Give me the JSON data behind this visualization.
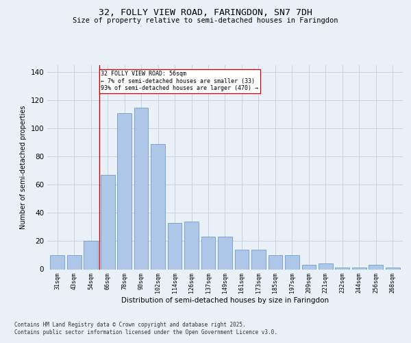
{
  "title1": "32, FOLLY VIEW ROAD, FARINGDON, SN7 7DH",
  "title2": "Size of property relative to semi-detached houses in Faringdon",
  "xlabel": "Distribution of semi-detached houses by size in Faringdon",
  "ylabel": "Number of semi-detached properties",
  "categories": [
    "31sqm",
    "43sqm",
    "54sqm",
    "66sqm",
    "78sqm",
    "90sqm",
    "102sqm",
    "114sqm",
    "126sqm",
    "137sqm",
    "149sqm",
    "161sqm",
    "173sqm",
    "185sqm",
    "197sqm",
    "209sqm",
    "221sqm",
    "232sqm",
    "244sqm",
    "256sqm",
    "268sqm"
  ],
  "values": [
    10,
    10,
    20,
    67,
    111,
    115,
    89,
    33,
    34,
    23,
    23,
    14,
    14,
    10,
    10,
    3,
    4,
    1,
    1,
    3,
    1
  ],
  "bar_color": "#aec6e8",
  "bar_edge_color": "#5a8fc2",
  "vline_x": 2.5,
  "vline_color": "#cc0000",
  "annotation_title": "32 FOLLY VIEW ROAD: 56sqm",
  "annotation_line1": "← 7% of semi-detached houses are smaller (33)",
  "annotation_line2": "93% of semi-detached houses are larger (470) →",
  "annotation_box_color": "#ffffff",
  "annotation_box_edge": "#cc0000",
  "ylim": [
    0,
    145
  ],
  "yticks": [
    0,
    20,
    40,
    60,
    80,
    100,
    120,
    140
  ],
  "footer1": "Contains HM Land Registry data © Crown copyright and database right 2025.",
  "footer2": "Contains public sector information licensed under the Open Government Licence v3.0.",
  "bg_color": "#eaf0f8"
}
